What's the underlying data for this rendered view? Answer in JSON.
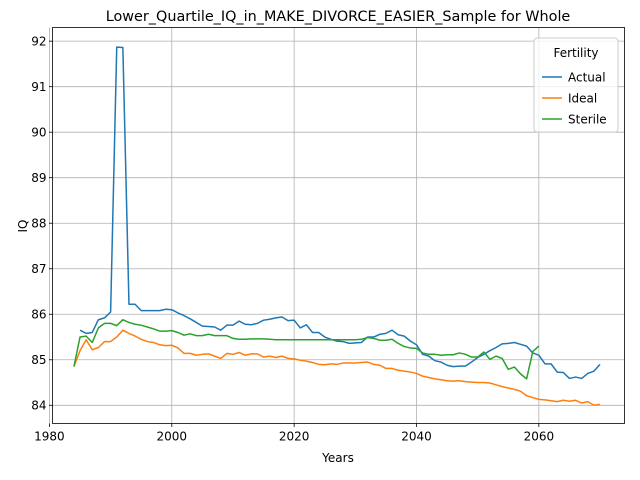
{
  "chart_data": {
    "type": "line",
    "title": "Lower_Quartile_IQ_in_MAKE_DIVORCE_EASIER_Sample for Whole",
    "xlabel": "Years",
    "ylabel": "IQ",
    "xlim": [
      1980.5,
      2074
    ],
    "ylim": [
      83.6,
      92.3
    ],
    "xticks": [
      1980,
      2000,
      2020,
      2040,
      2060
    ],
    "yticks": [
      84,
      85,
      86,
      87,
      88,
      89,
      90,
      91,
      92
    ],
    "grid": true,
    "legend": {
      "title": "Fertility",
      "position": "top-right"
    },
    "x": [
      1984,
      1985,
      1986,
      1987,
      1988,
      1989,
      1990,
      1991,
      1992,
      1993,
      1994,
      1995,
      1996,
      1997,
      1998,
      1999,
      2000,
      2001,
      2002,
      2003,
      2004,
      2005,
      2006,
      2007,
      2008,
      2009,
      2010,
      2011,
      2012,
      2013,
      2014,
      2015,
      2016,
      2017,
      2018,
      2019,
      2020,
      2021,
      2022,
      2023,
      2024,
      2025,
      2026,
      2027,
      2028,
      2029,
      2030,
      2031,
      2032,
      2033,
      2034,
      2035,
      2036,
      2037,
      2038,
      2039,
      2040,
      2041,
      2042,
      2043,
      2044,
      2045,
      2046,
      2047,
      2048,
      2049,
      2050,
      2051,
      2052,
      2053,
      2054,
      2055,
      2056,
      2057,
      2058,
      2059,
      2060,
      2061,
      2062,
      2063,
      2064,
      2065,
      2066,
      2067,
      2068,
      2069,
      2070
    ],
    "series": [
      {
        "name": "Actual",
        "color": "#1f77b4",
        "values": [
          null,
          85.65,
          85.58,
          85.6,
          85.88,
          85.92,
          86.05,
          91.87,
          91.86,
          86.22,
          86.22,
          86.08,
          86.08,
          86.08,
          86.08,
          86.11,
          86.1,
          86.03,
          85.97,
          85.9,
          85.82,
          85.74,
          85.73,
          85.72,
          85.65,
          85.76,
          85.76,
          85.85,
          85.78,
          85.77,
          85.8,
          85.87,
          85.89,
          85.92,
          85.94,
          85.86,
          85.87,
          85.7,
          85.77,
          85.6,
          85.6,
          85.5,
          85.45,
          85.41,
          85.4,
          85.36,
          85.37,
          85.38,
          85.5,
          85.5,
          85.56,
          85.58,
          85.65,
          85.55,
          85.52,
          85.41,
          85.33,
          85.12,
          85.08,
          84.98,
          84.95,
          84.88,
          84.85,
          84.86,
          84.86,
          84.95,
          85.05,
          85.12,
          85.2,
          85.27,
          85.35,
          85.36,
          85.38,
          85.34,
          85.3,
          85.15,
          85.1,
          84.91,
          84.91,
          84.73,
          84.72,
          84.59,
          84.62,
          84.59,
          84.7,
          84.75,
          84.9
        ]
      },
      {
        "name": "Ideal",
        "color": "#ff7f0e",
        "values": [
          84.85,
          85.2,
          85.44,
          85.22,
          85.27,
          85.4,
          85.4,
          85.5,
          85.65,
          85.58,
          85.52,
          85.45,
          85.4,
          85.38,
          85.33,
          85.31,
          85.32,
          85.26,
          85.14,
          85.14,
          85.1,
          85.12,
          85.13,
          85.08,
          85.03,
          85.14,
          85.12,
          85.16,
          85.1,
          85.13,
          85.13,
          85.06,
          85.08,
          85.05,
          85.08,
          85.03,
          85.02,
          84.99,
          84.97,
          84.94,
          84.9,
          84.89,
          84.91,
          84.9,
          84.93,
          84.93,
          84.93,
          84.94,
          84.95,
          84.9,
          84.88,
          84.81,
          84.81,
          84.77,
          84.75,
          84.73,
          84.7,
          84.64,
          84.61,
          84.58,
          84.56,
          84.54,
          84.53,
          84.54,
          84.52,
          84.51,
          84.5,
          84.5,
          84.49,
          84.45,
          84.41,
          84.38,
          84.35,
          84.31,
          84.21,
          84.17,
          84.13,
          84.12,
          84.1,
          84.08,
          84.11,
          84.09,
          84.11,
          84.05,
          84.08,
          84.0,
          84.02
        ]
      },
      {
        "name": "Sterile",
        "color": "#2ca02c",
        "values": [
          84.85,
          85.5,
          85.52,
          85.38,
          85.7,
          85.8,
          85.8,
          85.75,
          85.88,
          85.82,
          85.78,
          85.76,
          85.72,
          85.68,
          85.63,
          85.63,
          85.64,
          85.6,
          85.54,
          85.57,
          85.53,
          85.53,
          85.56,
          85.53,
          85.53,
          85.53,
          85.47,
          85.45,
          85.45,
          85.46,
          85.46,
          85.46,
          85.45,
          85.44,
          85.44,
          85.44,
          85.44,
          85.44,
          85.44,
          85.44,
          85.44,
          85.44,
          85.44,
          85.44,
          85.44,
          85.44,
          85.44,
          85.45,
          85.49,
          85.47,
          85.43,
          85.43,
          85.45,
          85.36,
          85.29,
          85.26,
          85.25,
          85.15,
          85.12,
          85.12,
          85.1,
          85.11,
          85.11,
          85.15,
          85.12,
          85.06,
          85.06,
          85.17,
          85.01,
          85.08,
          85.03,
          84.79,
          84.84,
          84.69,
          84.58,
          85.18,
          85.3,
          null,
          null,
          null,
          null,
          null,
          null,
          null,
          null,
          null,
          null
        ]
      }
    ]
  }
}
